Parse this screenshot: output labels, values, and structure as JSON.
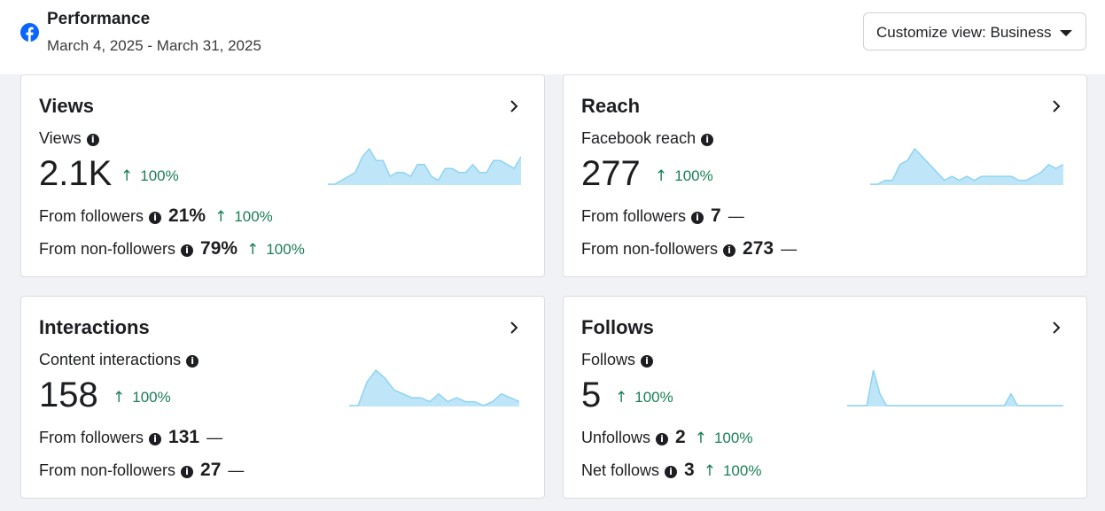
{
  "header": {
    "title": "Performance",
    "date_range": "March 4, 2025 - March 31, 2025",
    "customize_label": "Customize view: Business",
    "logo_icon": "facebook-logo-icon",
    "brand_color": "#0866ff"
  },
  "colors": {
    "positive": "#1a7f55",
    "spark_fill": "#bfe6f8",
    "spark_line": "#8fd3f1"
  },
  "cards": {
    "views": {
      "title": "Views",
      "metric_label": "Views",
      "value": "2.1K",
      "change": "100%",
      "rows": [
        {
          "label": "From followers",
          "value": "21%",
          "change": "100%"
        },
        {
          "label": "From non-followers",
          "value": "79%",
          "change": "100%"
        }
      ],
      "spark": [
        0,
        0,
        1,
        2,
        3,
        7,
        9,
        6,
        6,
        2,
        3,
        3,
        2,
        5,
        5,
        2,
        1,
        4,
        4,
        3,
        3,
        5,
        3,
        3,
        6,
        6,
        5,
        4,
        7
      ]
    },
    "reach": {
      "title": "Reach",
      "metric_label": "Facebook reach",
      "value": "277",
      "change": "100%",
      "rows": [
        {
          "label": "From followers",
          "value": "7",
          "change": "—"
        },
        {
          "label": "From non-followers",
          "value": "273",
          "change": "—"
        }
      ],
      "spark": [
        0,
        0,
        1,
        1,
        5,
        6,
        9,
        7,
        5,
        3,
        1,
        2,
        1,
        2,
        1,
        2,
        2,
        2,
        2,
        2,
        1,
        1,
        2,
        3,
        5,
        4,
        5
      ]
    },
    "interactions": {
      "title": "Interactions",
      "metric_label": "Content interactions",
      "value": "158",
      "change": "100%",
      "rows": [
        {
          "label": "From followers",
          "value": "131",
          "change": "—"
        },
        {
          "label": "From non-followers",
          "value": "27",
          "change": "—"
        }
      ],
      "spark": [
        0,
        0,
        6,
        9,
        7,
        4,
        3,
        2,
        2,
        1,
        3,
        1,
        2,
        1,
        1,
        0,
        1,
        3,
        2,
        1
      ]
    },
    "follows": {
      "title": "Follows",
      "metric_label": "Follows",
      "value": "5",
      "change": "100%",
      "rows": [
        {
          "label": "Unfollows",
          "value": "2",
          "change": "100%"
        },
        {
          "label": "Net follows",
          "value": "3",
          "change": "100%"
        }
      ],
      "spark": [
        0,
        0,
        0,
        0,
        9,
        3,
        0,
        0,
        0,
        0,
        0,
        0,
        0,
        0,
        0,
        0,
        0,
        0,
        0,
        0,
        0,
        0,
        0,
        0,
        0,
        3,
        0,
        0,
        0,
        0,
        0,
        0,
        0,
        0
      ]
    }
  }
}
